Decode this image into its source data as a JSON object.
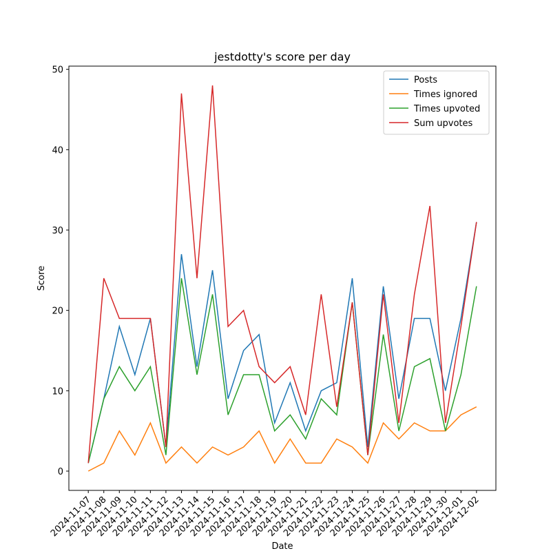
{
  "chart_data": {
    "type": "line",
    "title": "jestdotty's score per day",
    "xlabel": "Date",
    "ylabel": "Score",
    "categories": [
      "2024-11-07",
      "2024-11-08",
      "2024-11-09",
      "2024-11-10",
      "2024-11-11",
      "2024-11-12",
      "2024-11-13",
      "2024-11-14",
      "2024-11-15",
      "2024-11-16",
      "2024-11-17",
      "2024-11-18",
      "2024-11-19",
      "2024-11-20",
      "2024-11-21",
      "2024-11-22",
      "2024-11-23",
      "2024-11-24",
      "2024-11-25",
      "2024-11-26",
      "2024-11-27",
      "2024-11-28",
      "2024-11-29",
      "2024-11-30",
      "2024-12-01",
      "2024-12-02"
    ],
    "series": [
      {
        "name": "Posts",
        "color": "#1f77b4",
        "values": [
          1,
          9,
          18,
          12,
          19,
          3,
          27,
          13,
          25,
          9,
          15,
          17,
          6,
          11,
          5,
          10,
          11,
          24,
          3,
          23,
          9,
          19,
          19,
          10,
          19,
          31
        ]
      },
      {
        "name": "Times ignored",
        "color": "#ff7f0e",
        "values": [
          0,
          1,
          5,
          2,
          6,
          1,
          3,
          1,
          3,
          2,
          3,
          5,
          1,
          4,
          1,
          1,
          4,
          3,
          1,
          6,
          4,
          6,
          5,
          5,
          7,
          8
        ]
      },
      {
        "name": "Times upvoted",
        "color": "#2ca02c",
        "values": [
          1,
          9,
          13,
          10,
          13,
          2,
          24,
          12,
          22,
          7,
          12,
          12,
          5,
          7,
          4,
          9,
          7,
          21,
          2,
          17,
          5,
          13,
          14,
          5,
          12,
          23
        ]
      },
      {
        "name": "Sum upvotes",
        "color": "#d62728",
        "values": [
          1,
          24,
          19,
          19,
          19,
          3,
          47,
          24,
          48,
          18,
          20,
          13,
          11,
          13,
          7,
          22,
          8,
          21,
          2,
          22,
          6,
          22,
          33,
          6,
          18,
          31
        ]
      }
    ],
    "ylim": [
      -2.4,
      50.4
    ],
    "yticks": [
      0,
      10,
      20,
      30,
      40,
      50
    ],
    "legend": "upper right"
  }
}
